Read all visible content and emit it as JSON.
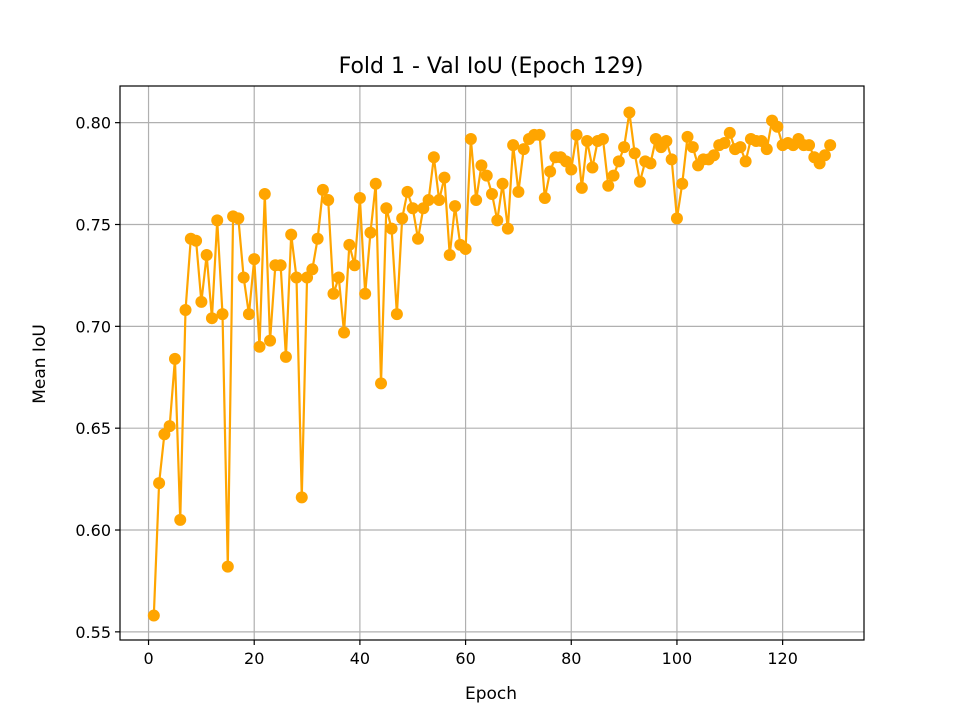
{
  "chart_data": {
    "type": "line",
    "title": "Fold 1 - Val IoU (Epoch 129)",
    "xlabel": "Epoch",
    "ylabel": "Mean IoU",
    "xlim": [
      -5.4,
      135.4
    ],
    "ylim": [
      0.546,
      0.818
    ],
    "xticks": [
      0,
      20,
      40,
      60,
      80,
      100,
      120
    ],
    "xtick_labels": [
      "0",
      "20",
      "40",
      "60",
      "80",
      "100",
      "120"
    ],
    "yticks": [
      0.55,
      0.6,
      0.65,
      0.7,
      0.75,
      0.8
    ],
    "ytick_labels": [
      "0.55",
      "0.60",
      "0.65",
      "0.70",
      "0.75",
      "0.80"
    ],
    "grid": true,
    "series": [
      {
        "color": "#ffa500",
        "marker": "circle",
        "x": [
          1,
          2,
          3,
          4,
          5,
          6,
          7,
          8,
          9,
          10,
          11,
          12,
          13,
          14,
          15,
          16,
          17,
          18,
          19,
          20,
          21,
          22,
          23,
          24,
          25,
          26,
          27,
          28,
          29,
          30,
          31,
          32,
          33,
          34,
          35,
          36,
          37,
          38,
          39,
          40,
          41,
          42,
          43,
          44,
          45,
          46,
          47,
          48,
          49,
          50,
          51,
          52,
          53,
          54,
          55,
          56,
          57,
          58,
          59,
          60,
          61,
          62,
          63,
          64,
          65,
          66,
          67,
          68,
          69,
          70,
          71,
          72,
          73,
          74,
          75,
          76,
          77,
          78,
          79,
          80,
          81,
          82,
          83,
          84,
          85,
          86,
          87,
          88,
          89,
          90,
          91,
          92,
          93,
          94,
          95,
          96,
          97,
          98,
          99,
          100,
          101,
          102,
          103,
          104,
          105,
          106,
          107,
          108,
          109,
          110,
          111,
          112,
          113,
          114,
          115,
          116,
          117,
          118,
          119,
          120,
          121,
          122,
          123,
          124,
          125,
          126,
          127,
          128,
          129
        ],
        "y": [
          0.558,
          0.623,
          0.647,
          0.651,
          0.684,
          0.605,
          0.708,
          0.743,
          0.742,
          0.712,
          0.735,
          0.704,
          0.752,
          0.706,
          0.582,
          0.754,
          0.753,
          0.724,
          0.706,
          0.733,
          0.69,
          0.765,
          0.693,
          0.73,
          0.73,
          0.685,
          0.745,
          0.724,
          0.616,
          0.724,
          0.728,
          0.743,
          0.767,
          0.762,
          0.716,
          0.724,
          0.697,
          0.74,
          0.73,
          0.763,
          0.716,
          0.746,
          0.77,
          0.672,
          0.758,
          0.748,
          0.706,
          0.753,
          0.766,
          0.758,
          0.743,
          0.758,
          0.762,
          0.783,
          0.762,
          0.773,
          0.735,
          0.759,
          0.74,
          0.738,
          0.792,
          0.762,
          0.779,
          0.774,
          0.765,
          0.752,
          0.77,
          0.748,
          0.789,
          0.766,
          0.787,
          0.792,
          0.794,
          0.794,
          0.763,
          0.776,
          0.783,
          0.783,
          0.781,
          0.777,
          0.794,
          0.768,
          0.791,
          0.778,
          0.791,
          0.792,
          0.769,
          0.774,
          0.781,
          0.788,
          0.805,
          0.785,
          0.771,
          0.781,
          0.78,
          0.792,
          0.788,
          0.791,
          0.782,
          0.753,
          0.77,
          0.793,
          0.788,
          0.779,
          0.782,
          0.782,
          0.784,
          0.789,
          0.79,
          0.795,
          0.787,
          0.788,
          0.781,
          0.792,
          0.791,
          0.791,
          0.787,
          0.801,
          0.798,
          0.789,
          0.79,
          0.789,
          0.792,
          0.789,
          0.789,
          0.783,
          0.78,
          0.784,
          0.789
        ]
      }
    ]
  }
}
